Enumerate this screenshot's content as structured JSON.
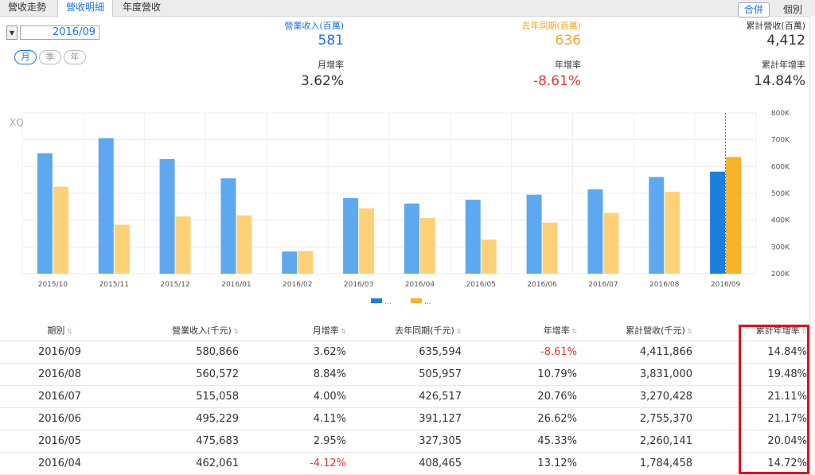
{
  "tabs": [
    {
      "label": "營收走勢",
      "active": false
    },
    {
      "label": "營收明細",
      "active": true
    },
    {
      "label": "年度營收",
      "active": false
    }
  ],
  "view_buttons": [
    {
      "label": "合併",
      "active": true
    },
    {
      "label": "個別",
      "active": false
    }
  ],
  "date_select": {
    "value": "2016/09"
  },
  "period_buttons": [
    {
      "label": "月",
      "active": true
    },
    {
      "label": "季",
      "active": false
    },
    {
      "label": "年",
      "active": false
    }
  ],
  "stats": {
    "revenue": {
      "label": "營業收入(百萬)",
      "value": "581",
      "color": "#1a73e8"
    },
    "last_year": {
      "label": "去年同期(百萬)",
      "value": "636",
      "color": "#f5a623"
    },
    "cumulative": {
      "label": "累計營收(百萬)",
      "value": "4,412"
    },
    "mom": {
      "label": "月增率",
      "value": "3.62%"
    },
    "yoy": {
      "label": "年增率",
      "value": "-8.61%",
      "color": "#e53935"
    },
    "cum_yoy": {
      "label": "累計年增率",
      "value": "14.84%"
    }
  },
  "chart_data": {
    "type": "bar",
    "watermark": "XQ",
    "categories": [
      "2015/10",
      "2015/11",
      "2015/12",
      "2016/01",
      "2016/02",
      "2016/03",
      "2016/04",
      "2016/05",
      "2016/06",
      "2016/07",
      "2016/08",
      "2016/09"
    ],
    "series": [
      {
        "name": "營業收入",
        "color": "#5ea8f0",
        "highlight_color": "#1a7fe0",
        "values": [
          650,
          706,
          628,
          556,
          283,
          482,
          462,
          476,
          495,
          515,
          561,
          581
        ]
      },
      {
        "name": "去年同期",
        "color": "#ffd27a",
        "highlight_color": "#f8b328",
        "values": [
          525,
          383,
          414,
          418,
          285,
          444,
          408,
          327,
          391,
          427,
          506,
          636
        ]
      }
    ],
    "ylim": [
      200,
      800
    ],
    "yticks": [
      "200K",
      "300K",
      "400K",
      "500K",
      "600K",
      "700K",
      "800K"
    ],
    "legend": [
      {
        "label": "..."
      },
      {
        "label": "..."
      }
    ],
    "legend_position": "bottom-center"
  },
  "table": {
    "headers": [
      "期別",
      "營業收入(千元)",
      "月增率",
      "去年同期(千元)",
      "年增率",
      "累計營收(千元)",
      "累計年增率"
    ],
    "rows": [
      {
        "cells": [
          "2016/09",
          "580,866",
          "3.62%",
          "635,594",
          "-8.61%",
          "4,411,866",
          "14.84%"
        ],
        "neg": [
          4
        ]
      },
      {
        "cells": [
          "2016/08",
          "560,572",
          "8.84%",
          "505,957",
          "10.79%",
          "3,831,000",
          "19.48%"
        ],
        "neg": []
      },
      {
        "cells": [
          "2016/07",
          "515,058",
          "4.00%",
          "426,517",
          "20.76%",
          "3,270,428",
          "21.11%"
        ],
        "neg": []
      },
      {
        "cells": [
          "2016/06",
          "495,229",
          "4.11%",
          "391,127",
          "26.62%",
          "2,755,370",
          "21.17%"
        ],
        "neg": []
      },
      {
        "cells": [
          "2016/05",
          "475,683",
          "2.95%",
          "327,305",
          "45.33%",
          "2,260,141",
          "20.04%"
        ],
        "neg": []
      },
      {
        "cells": [
          "2016/04",
          "462,061",
          "-4.12%",
          "408,465",
          "13.12%",
          "1,784,458",
          "14.72%"
        ],
        "neg": [
          2
        ]
      }
    ]
  }
}
